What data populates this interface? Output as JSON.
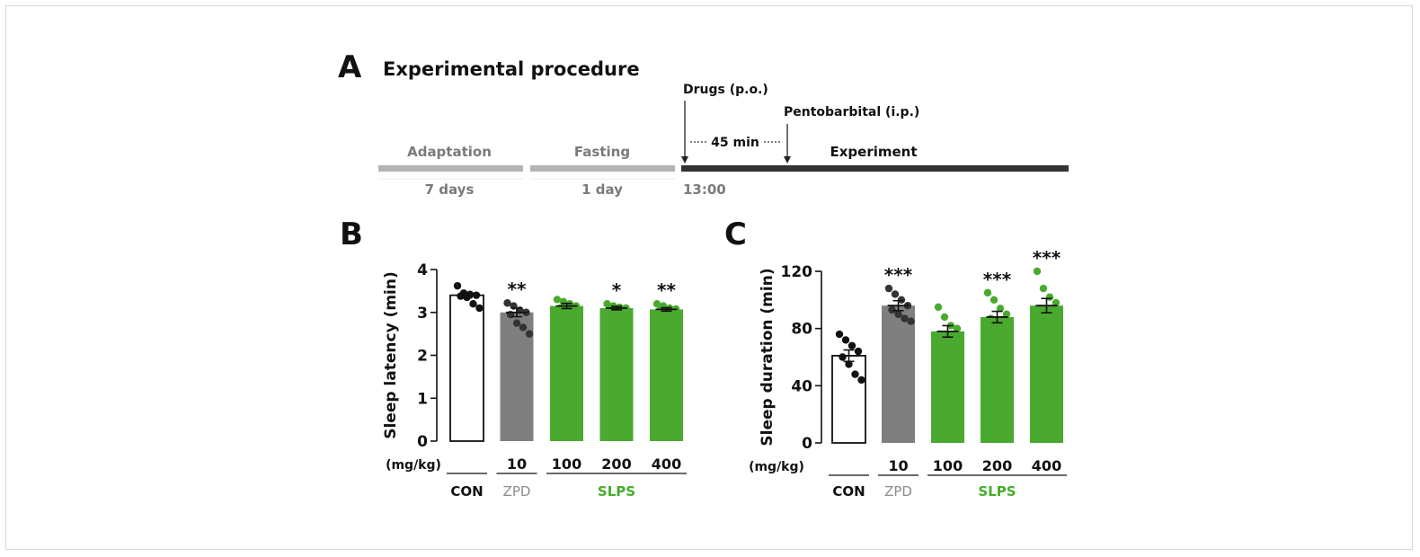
{
  "colors": {
    "con": "#ffffff",
    "zpd": "#7f7f7f",
    "slps": "#4aaa2f",
    "zpd_label": "#8c8c8c",
    "slps_label": "#45ad2a",
    "timeline_light": "#b3b3b3",
    "timeline_dark": "#333333"
  },
  "panel_a": {
    "letter": "A",
    "title": "Experimental procedure",
    "phases": [
      {
        "name": "Adaptation",
        "duration": "7 days"
      },
      {
        "name": "Fasting",
        "duration": "1 day"
      },
      {
        "name": "Experiment",
        "duration": "13:00"
      }
    ],
    "drugs_label": "Drugs (p.o.)",
    "pentobarbital_label": "Pentobarbital (i.p.)",
    "interval_label": "45 min"
  },
  "chart_data": [
    {
      "type": "bar",
      "panel": "B",
      "ylabel": "Sleep latency (min)",
      "ylim": [
        0,
        4
      ],
      "yticks": [
        "0",
        "1",
        "2",
        "3",
        "4"
      ],
      "dose_unit": "(mg/kg)",
      "categories": [
        "CON",
        "ZPD 10",
        "SLPS 100",
        "SLPS 200",
        "SLPS 400"
      ],
      "doses": [
        "",
        "10",
        "100",
        "200",
        "400"
      ],
      "groups": [
        {
          "name": "CON",
          "span": [
            0,
            0
          ]
        },
        {
          "name": "ZPD",
          "span": [
            1,
            1
          ]
        },
        {
          "name": "SLPS",
          "span": [
            2,
            4
          ]
        }
      ],
      "values": [
        3.4,
        3.0,
        3.15,
        3.1,
        3.07
      ],
      "sem": [
        0.06,
        0.1,
        0.06,
        0.04,
        0.04
      ],
      "significance": [
        "",
        "**",
        "",
        "*",
        "**"
      ],
      "points": [
        [
          3.62,
          3.45,
          3.42,
          3.4,
          3.38,
          3.35,
          3.2,
          3.1
        ],
        [
          3.22,
          3.15,
          3.05,
          3.0,
          2.95,
          2.75,
          2.65,
          2.5
        ],
        [
          3.3,
          3.25,
          3.2,
          3.15,
          3.1,
          2.95,
          2.85,
          2.8
        ],
        [
          3.2,
          3.15,
          3.12,
          3.1,
          3.08,
          3.05,
          3.02,
          2.98
        ],
        [
          3.2,
          3.15,
          3.1,
          3.08,
          3.05,
          3.02,
          2.97,
          2.92
        ]
      ]
    },
    {
      "type": "bar",
      "panel": "C",
      "ylabel": "Sleep duration (min)",
      "ylim": [
        0,
        120
      ],
      "yticks": [
        "0",
        "40",
        "80",
        "120"
      ],
      "dose_unit": "(mg/kg)",
      "categories": [
        "CON",
        "ZPD 10",
        "SLPS 100",
        "SLPS 200",
        "SLPS 400"
      ],
      "doses": [
        "",
        "10",
        "100",
        "200",
        "400"
      ],
      "groups": [
        {
          "name": "CON",
          "span": [
            0,
            0
          ]
        },
        {
          "name": "ZPD",
          "span": [
            1,
            1
          ]
        },
        {
          "name": "SLPS",
          "span": [
            2,
            4
          ]
        }
      ],
      "values": [
        61,
        96,
        78,
        88,
        96
      ],
      "sem": [
        4,
        3.5,
        4,
        4,
        5
      ],
      "significance": [
        "",
        "***",
        "",
        "***",
        "***"
      ],
      "points": [
        [
          76,
          72,
          68,
          64,
          60,
          55,
          48,
          44
        ],
        [
          108,
          104,
          100,
          96,
          93,
          90,
          87,
          85
        ],
        [
          95,
          88,
          82,
          80,
          76,
          72,
          67,
          60
        ],
        [
          105,
          100,
          94,
          90,
          87,
          83,
          78,
          74
        ],
        [
          120,
          108,
          102,
          98,
          94,
          90,
          86,
          80
        ]
      ]
    }
  ]
}
